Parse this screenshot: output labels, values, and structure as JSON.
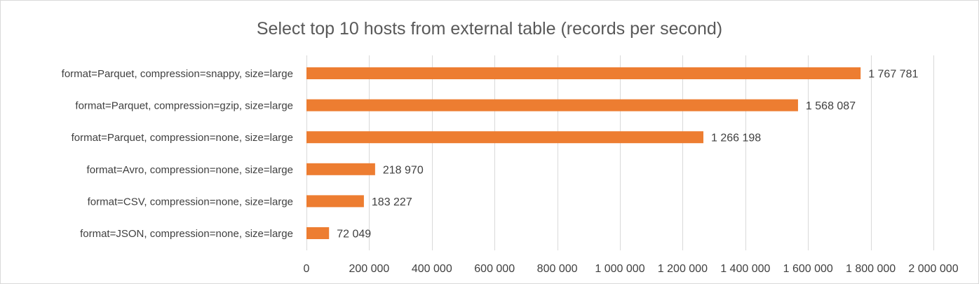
{
  "chart_data": {
    "type": "bar",
    "orientation": "horizontal",
    "title": "Select top 10 hosts from external table (records per second)",
    "categories": [
      "format=Parquet, compression=snappy, size=large",
      "format=Parquet, compression=gzip, size=large",
      "format=Parquet, compression=none, size=large",
      "format=Avro, compression=none, size=large",
      "format=CSV, compression=none, size=large",
      "format=JSON, compression=none, size=large"
    ],
    "values": [
      1767781,
      1568087,
      1266198,
      218970,
      183227,
      72049
    ],
    "value_labels": [
      "1 767 781",
      "1 568 087",
      "1 266 198",
      "218 970",
      "183 227",
      "72 049"
    ],
    "x_ticks": [
      0,
      200000,
      400000,
      600000,
      800000,
      1000000,
      1200000,
      1400000,
      1600000,
      1800000,
      2000000
    ],
    "x_tick_labels": [
      "0",
      "200 000",
      "400 000",
      "600 000",
      "800 000",
      "1 000 000",
      "1 200 000",
      "1 400 000",
      "1 600 000",
      "1 800 000",
      "2 000 000"
    ],
    "xlim": [
      0,
      2000000
    ],
    "grid": "vertical",
    "legend": "none",
    "colors": {
      "bar": "#ED7D31",
      "grid": "#d9d9d9",
      "text": "#404040",
      "title": "#595959"
    }
  }
}
